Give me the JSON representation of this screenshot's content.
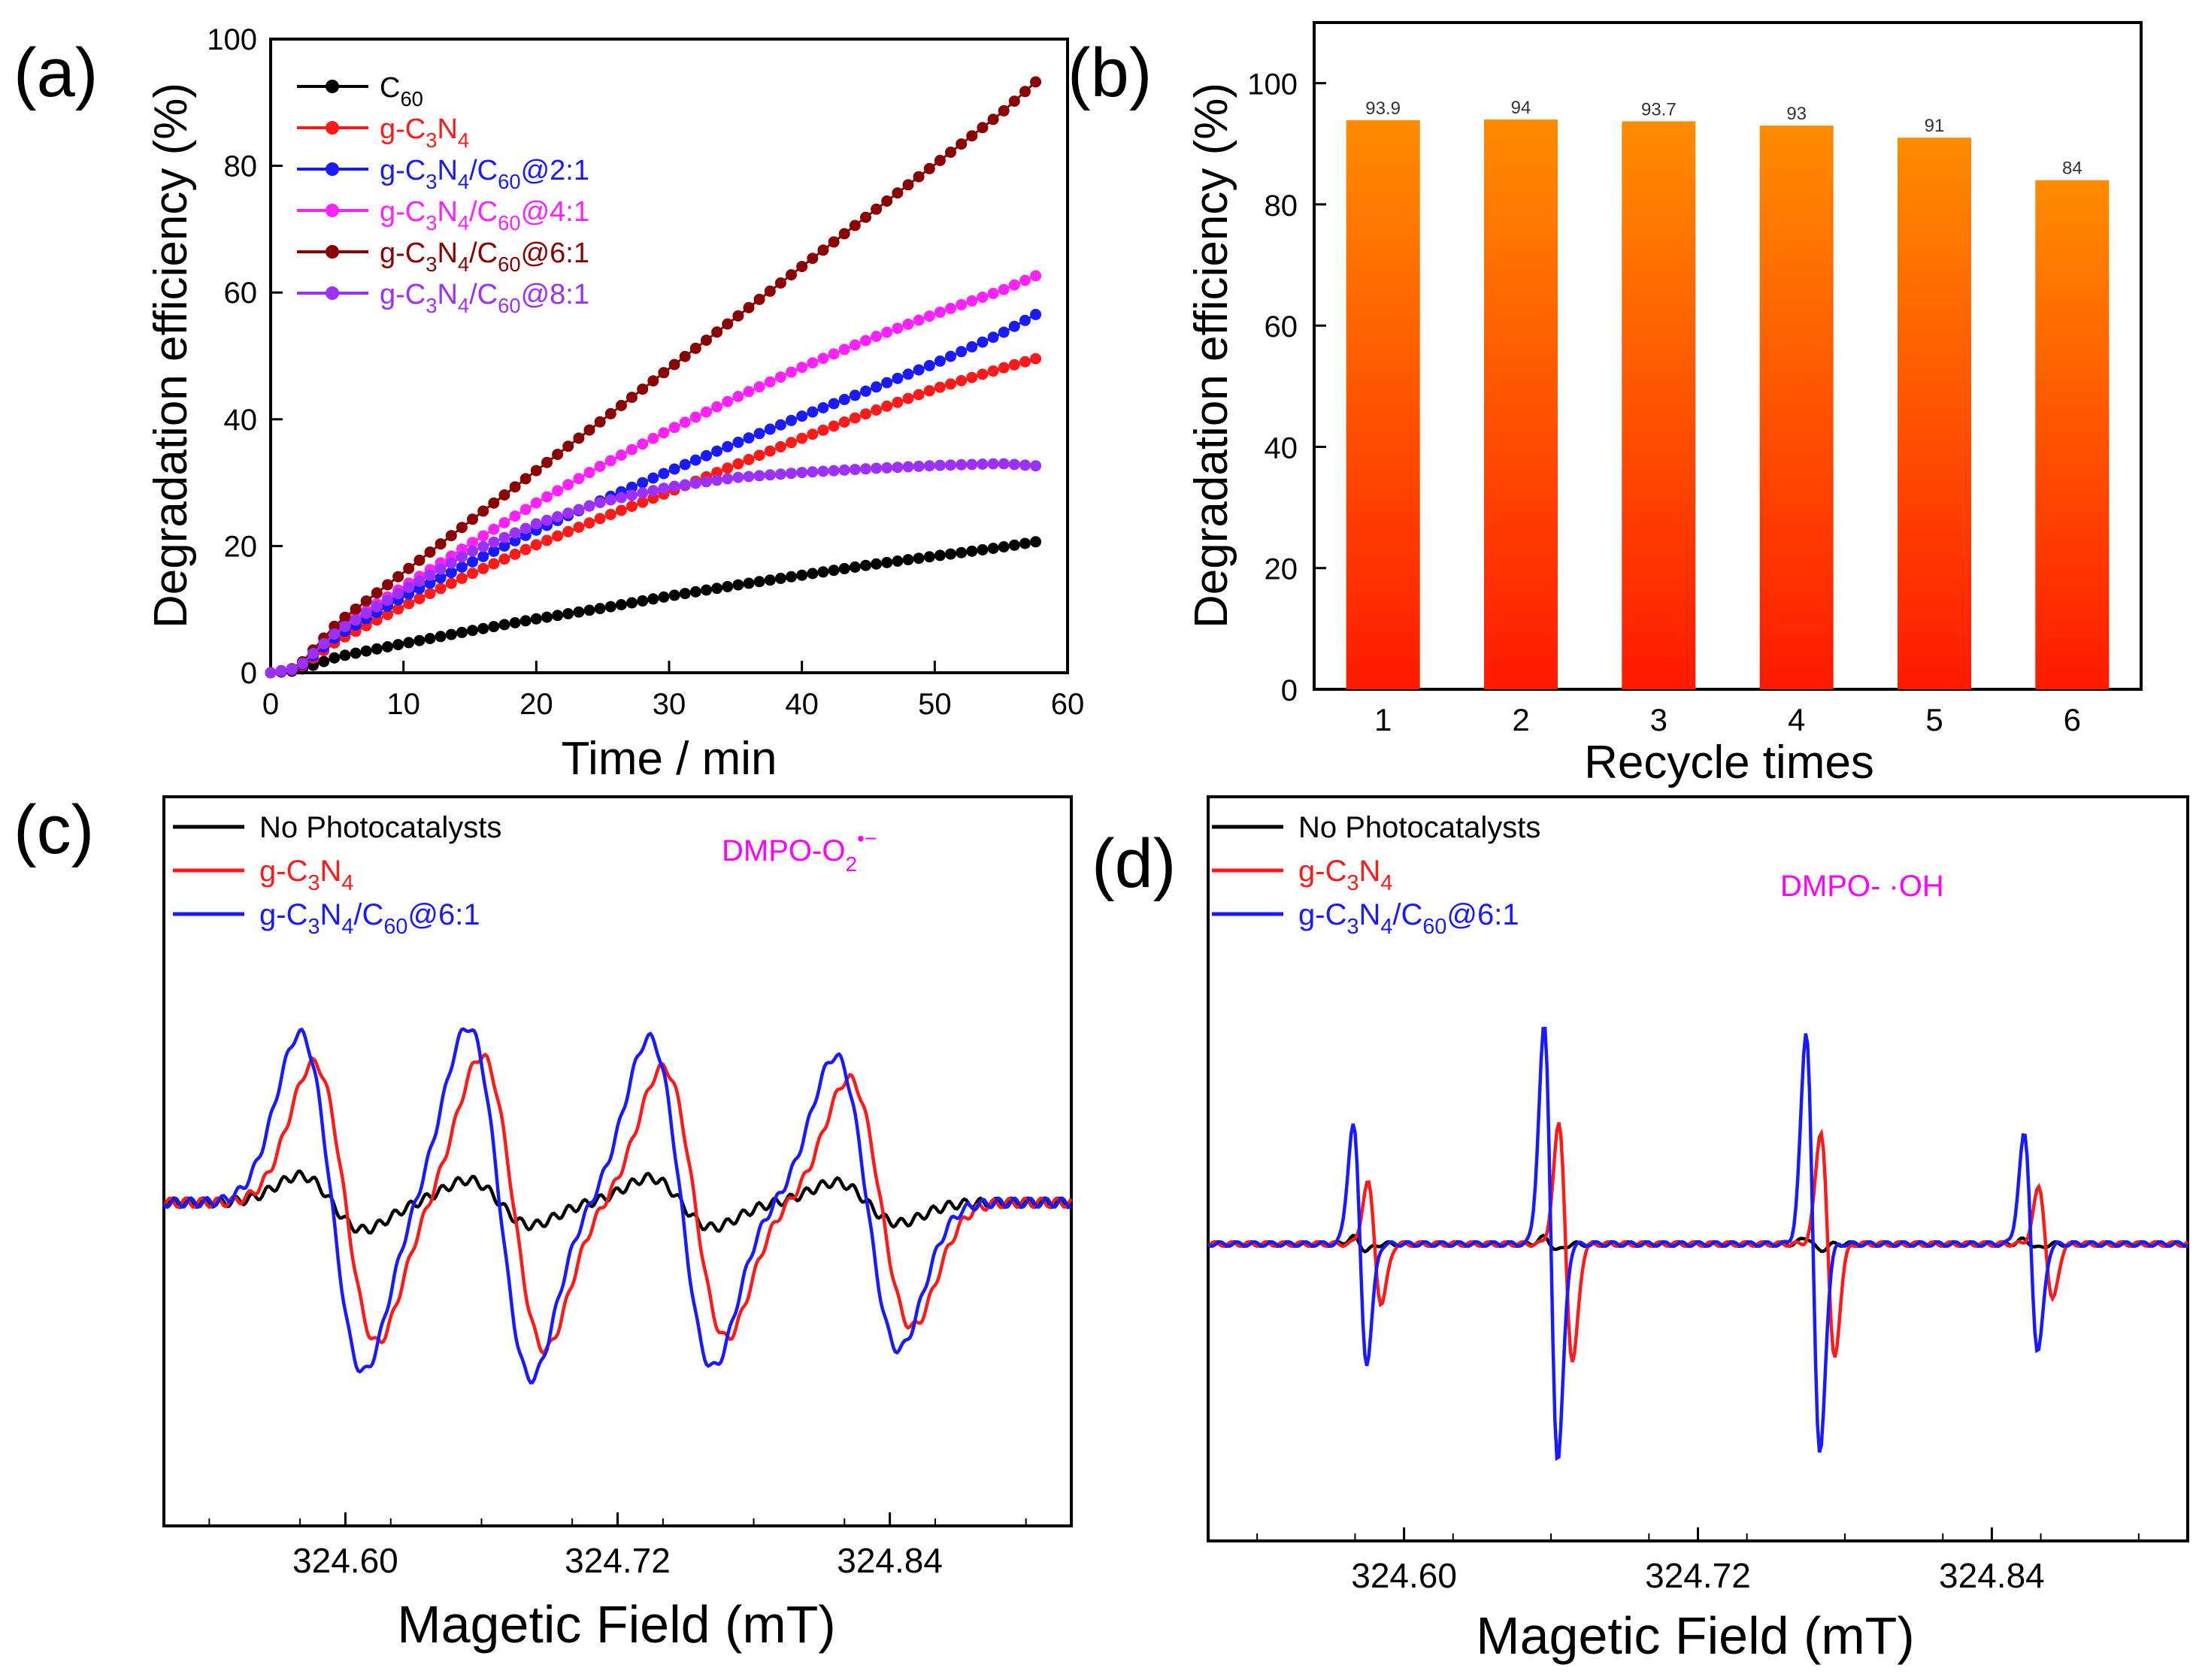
{
  "figure": {
    "colors": {
      "c60": "#000000",
      "gc3n4": "#ff1a1a",
      "r21": "#1a1aff",
      "r41": "#ff22ff",
      "r61": "#8b0000",
      "r81": "#9b30ff",
      "bar_top": "#ff8c00",
      "bar_bottom": "#ff1a00",
      "dmpo_label": "#ff00ff"
    }
  },
  "chart_data": [
    {
      "panel": "(a)",
      "type": "line",
      "xlabel": "Time / min",
      "ylabel": "Degradation efficiency (%)",
      "xlim": [
        0,
        60
      ],
      "ylim": [
        0,
        100
      ],
      "xticks": [
        "0",
        "10",
        "20",
        "30",
        "40",
        "50",
        "60"
      ],
      "yticks": [
        "0",
        "20",
        "40",
        "60",
        "80",
        "100"
      ],
      "legend_position": "top-left",
      "series": [
        {
          "key": "c60",
          "base": "C",
          "sub": "60",
          "tail": "",
          "points": [
            [
              0,
              0
            ],
            [
              2,
              0.3
            ],
            [
              5,
              2.5
            ],
            [
              10,
              4.6
            ],
            [
              15,
              6.6
            ],
            [
              20,
              8.5
            ],
            [
              25,
              10.2
            ],
            [
              30,
              12.1
            ],
            [
              35,
              13.8
            ],
            [
              40,
              15.4
            ],
            [
              45,
              17
            ],
            [
              50,
              18.4
            ],
            [
              55,
              19.8
            ],
            [
              58,
              20.8
            ]
          ]
        },
        {
          "key": "gc3n4",
          "base": "g-C",
          "sub": "3",
          "mid": "N",
          "sub2": "4",
          "tail": "",
          "points": [
            [
              0,
              0
            ],
            [
              2,
              0.5
            ],
            [
              5,
              5
            ],
            [
              10,
              10.5
            ],
            [
              15,
              15.5
            ],
            [
              20,
              20.2
            ],
            [
              25,
              24.5
            ],
            [
              30,
              28.5
            ],
            [
              35,
              32.8
            ],
            [
              40,
              37
            ],
            [
              45,
              41
            ],
            [
              50,
              44.8
            ],
            [
              55,
              48
            ],
            [
              58,
              49.8
            ]
          ]
        },
        {
          "key": "r21",
          "base": "g-C",
          "sub": "3",
          "mid": "N",
          "sub2": "4",
          "tail2": "/C",
          "sub3": "60",
          "tail": "@2:1",
          "points": [
            [
              0,
              0
            ],
            [
              2,
              0.6
            ],
            [
              5,
              5.8
            ],
            [
              10,
              12
            ],
            [
              15,
              17.3
            ],
            [
              20,
              22.5
            ],
            [
              25,
              27.3
            ],
            [
              30,
              31.8
            ],
            [
              35,
              36.2
            ],
            [
              40,
              40.5
            ],
            [
              45,
              44.6
            ],
            [
              50,
              48.8
            ],
            [
              55,
              53.5
            ],
            [
              58,
              57
            ]
          ]
        },
        {
          "key": "r41",
          "base": "g-C",
          "sub": "3",
          "mid": "N",
          "sub2": "4",
          "tail2": "/C",
          "sub3": "60",
          "tail": "@4:1",
          "points": [
            [
              0,
              0
            ],
            [
              2,
              0.7
            ],
            [
              5,
              6.8
            ],
            [
              10,
              13.6
            ],
            [
              15,
              20.3
            ],
            [
              20,
              26.8
            ],
            [
              25,
              32.8
            ],
            [
              30,
              38.3
            ],
            [
              35,
              43.4
            ],
            [
              40,
              48.2
            ],
            [
              45,
              52.6
            ],
            [
              50,
              56.6
            ],
            [
              55,
              60.3
            ],
            [
              58,
              63
            ]
          ]
        },
        {
          "key": "r61",
          "base": "g-C",
          "sub": "3",
          "mid": "N",
          "sub2": "4",
          "tail2": "/C",
          "sub3": "60",
          "tail": "@6:1",
          "points": [
            [
              0,
              0
            ],
            [
              2,
              0.8
            ],
            [
              5,
              7.8
            ],
            [
              10,
              15.8
            ],
            [
              15,
              23.9
            ],
            [
              20,
              31.9
            ],
            [
              25,
              39.9
            ],
            [
              30,
              48
            ],
            [
              35,
              56
            ],
            [
              40,
              64.1
            ],
            [
              45,
              72.2
            ],
            [
              50,
              80.2
            ],
            [
              55,
              88.3
            ],
            [
              58,
              94
            ]
          ]
        },
        {
          "key": "r81",
          "base": "g-C",
          "sub": "3",
          "mid": "N",
          "sub2": "4",
          "tail2": "/C",
          "sub3": "60",
          "tail": "@8:1",
          "points": [
            [
              0,
              0
            ],
            [
              2,
              0.7
            ],
            [
              5,
              6.5
            ],
            [
              10,
              13
            ],
            [
              15,
              19
            ],
            [
              20,
              23.5
            ],
            [
              25,
              27
            ],
            [
              30,
              29.3
            ],
            [
              35,
              30.8
            ],
            [
              40,
              31.6
            ],
            [
              45,
              32.2
            ],
            [
              50,
              32.7
            ],
            [
              55,
              33
            ],
            [
              58,
              32.6
            ]
          ]
        }
      ]
    },
    {
      "panel": "(b)",
      "type": "bar",
      "xlabel": "Recycle times",
      "ylabel": "Degradation efficiency (%)",
      "categories": [
        "1",
        "2",
        "3",
        "4",
        "5",
        "6"
      ],
      "values": [
        93.9,
        94,
        93.7,
        93,
        91,
        84
      ],
      "value_labels": [
        "93.9",
        "94",
        "93.7",
        "93",
        "91",
        "84"
      ],
      "ylim": [
        0,
        110
      ],
      "yticks": [
        "0",
        "20",
        "40",
        "60",
        "80",
        "100"
      ]
    },
    {
      "panel": "(c)",
      "type": "line",
      "xlabel": "Magetic Field (mT)",
      "xticks": [
        "324.60",
        "324.72",
        "324.84"
      ],
      "xlim": [
        324.52,
        324.92
      ],
      "annotation": {
        "base": "DMPO-O",
        "sub": "2",
        "sup": "•−"
      },
      "legend": [
        {
          "key": "none",
          "label": "No Photocatalysts"
        },
        {
          "key": "gc3n4",
          "base": "g-C",
          "sub": "3",
          "mid": "N",
          "sub2": "4",
          "tail": ""
        },
        {
          "key": "r21",
          "base": "g-C",
          "sub": "3",
          "mid": "N",
          "sub2": "4",
          "tail2": "/C",
          "sub3": "60",
          "tail": "@6:1"
        }
      ],
      "peaks": [
        324.594,
        324.668,
        324.748,
        324.83
      ],
      "amplitudes": {
        "none": [
          0.12,
          0.1,
          0.11,
          0.09
        ],
        "gc3n4": [
          0.62,
          0.65,
          0.6,
          0.55
        ],
        "r21": [
          0.75,
          0.78,
          0.73,
          0.65
        ]
      }
    },
    {
      "panel": "(d)",
      "type": "line",
      "xlabel": "Magetic Field (mT)",
      "xticks": [
        "324.60",
        "324.72",
        "324.84"
      ],
      "xlim": [
        324.52,
        324.92
      ],
      "annotation": {
        "base": "DMPO- ·OH"
      },
      "legend": [
        {
          "key": "none",
          "label": "No Photocatalysts"
        },
        {
          "key": "gc3n4",
          "base": "g-C",
          "sub": "3",
          "mid": "N",
          "sub2": "4",
          "tail": ""
        },
        {
          "key": "r21",
          "base": "g-C",
          "sub": "3",
          "mid": "N",
          "sub2": "4",
          "tail2": "/C",
          "sub3": "60",
          "tail": "@6:1"
        }
      ],
      "peaks": [
        324.582,
        324.66,
        324.767,
        324.856
      ],
      "amplitudes": {
        "none": [
          0.03,
          0.03,
          0.03,
          0.02
        ],
        "gc3n4": [
          0.28,
          0.55,
          0.52,
          0.26
        ],
        "r21": [
          0.55,
          1.0,
          0.97,
          0.5
        ]
      }
    }
  ]
}
